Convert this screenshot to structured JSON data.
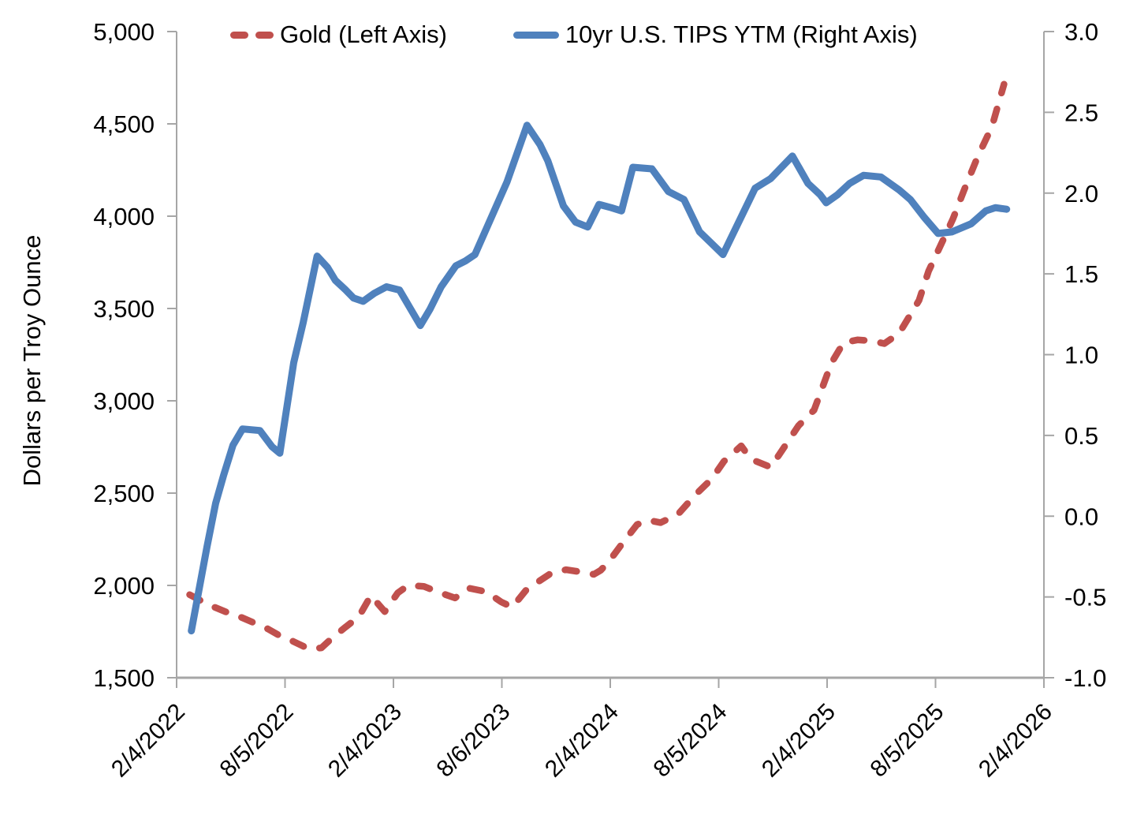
{
  "chart_data": {
    "type": "line",
    "title": "",
    "legend_position": "top",
    "grid": false,
    "left_axis": {
      "label": "Dollars per Troy Ounce",
      "min": 1500,
      "max": 5000,
      "step": 500,
      "ticks": [
        "5,000",
        "4,500",
        "4,000",
        "3,500",
        "3,000",
        "2,500",
        "2,000",
        "1,500"
      ]
    },
    "right_axis": {
      "label": "",
      "min": -1.0,
      "max": 3.0,
      "step": 0.5,
      "ticks": [
        "3.0",
        "2.5",
        "2.0",
        "1.5",
        "1.0",
        "0.5",
        "0.0",
        "-0.5",
        "-1.0"
      ]
    },
    "x_axis": {
      "tick_labels": [
        "2/4/2022",
        "8/5/2022",
        "2/4/2023",
        "8/6/2023",
        "2/4/2024",
        "8/5/2024",
        "2/4/2025",
        "8/5/2025",
        "2/4/2026"
      ],
      "label_rotation_deg": -45
    },
    "series": [
      {
        "name": "Gold (Left Axis)",
        "axis": "left",
        "color": "#C0504D",
        "style": "dashed",
        "points": [
          [
            0.015,
            1950
          ],
          [
            0.037,
            1895
          ],
          [
            0.056,
            1858
          ],
          [
            0.074,
            1828
          ],
          [
            0.089,
            1798
          ],
          [
            0.105,
            1765
          ],
          [
            0.121,
            1722
          ],
          [
            0.133,
            1700
          ],
          [
            0.153,
            1655
          ],
          [
            0.167,
            1662
          ],
          [
            0.18,
            1718
          ],
          [
            0.195,
            1775
          ],
          [
            0.21,
            1830
          ],
          [
            0.224,
            1945
          ],
          [
            0.24,
            1858
          ],
          [
            0.255,
            1960
          ],
          [
            0.267,
            2000
          ],
          [
            0.285,
            1995
          ],
          [
            0.301,
            1965
          ],
          [
            0.321,
            1932
          ],
          [
            0.337,
            1985
          ],
          [
            0.357,
            1966
          ],
          [
            0.374,
            1911
          ],
          [
            0.387,
            1882
          ],
          [
            0.403,
            1975
          ],
          [
            0.417,
            2020
          ],
          [
            0.433,
            2070
          ],
          [
            0.449,
            2085
          ],
          [
            0.466,
            2073
          ],
          [
            0.481,
            2060
          ],
          [
            0.489,
            2082
          ],
          [
            0.498,
            2127
          ],
          [
            0.515,
            2234
          ],
          [
            0.531,
            2330
          ],
          [
            0.544,
            2353
          ],
          [
            0.558,
            2340
          ],
          [
            0.578,
            2385
          ],
          [
            0.598,
            2490
          ],
          [
            0.617,
            2577
          ],
          [
            0.631,
            2672
          ],
          [
            0.651,
            2756
          ],
          [
            0.662,
            2684
          ],
          [
            0.685,
            2640
          ],
          [
            0.695,
            2710
          ],
          [
            0.717,
            2865
          ],
          [
            0.735,
            2950
          ],
          [
            0.755,
            3205
          ],
          [
            0.769,
            3315
          ],
          [
            0.785,
            3330
          ],
          [
            0.801,
            3325
          ],
          [
            0.816,
            3310
          ],
          [
            0.833,
            3365
          ],
          [
            0.856,
            3544
          ],
          [
            0.867,
            3702
          ],
          [
            0.881,
            3843
          ],
          [
            0.895,
            3984
          ],
          [
            0.908,
            4142
          ],
          [
            0.924,
            4326
          ],
          [
            0.94,
            4484
          ],
          [
            0.954,
            4715
          ]
        ]
      },
      {
        "name": "10yr U.S. TIPS YTM (Right Axis)",
        "axis": "right",
        "color": "#4F81BD",
        "style": "solid",
        "points": [
          [
            0.017,
            -0.71
          ],
          [
            0.035,
            -0.19
          ],
          [
            0.045,
            0.08
          ],
          [
            0.054,
            0.25
          ],
          [
            0.065,
            0.44
          ],
          [
            0.076,
            0.54
          ],
          [
            0.096,
            0.53
          ],
          [
            0.11,
            0.43
          ],
          [
            0.119,
            0.39
          ],
          [
            0.135,
            0.95
          ],
          [
            0.146,
            1.2
          ],
          [
            0.162,
            1.61
          ],
          [
            0.174,
            1.54
          ],
          [
            0.183,
            1.46
          ],
          [
            0.195,
            1.4
          ],
          [
            0.204,
            1.35
          ],
          [
            0.215,
            1.33
          ],
          [
            0.228,
            1.38
          ],
          [
            0.242,
            1.42
          ],
          [
            0.257,
            1.4
          ],
          [
            0.269,
            1.29
          ],
          [
            0.281,
            1.18
          ],
          [
            0.292,
            1.28
          ],
          [
            0.305,
            1.42
          ],
          [
            0.322,
            1.55
          ],
          [
            0.333,
            1.58
          ],
          [
            0.344,
            1.62
          ],
          [
            0.381,
            2.07
          ],
          [
            0.404,
            2.42
          ],
          [
            0.419,
            2.3
          ],
          [
            0.428,
            2.2
          ],
          [
            0.446,
            1.92
          ],
          [
            0.46,
            1.82
          ],
          [
            0.474,
            1.79
          ],
          [
            0.487,
            1.93
          ],
          [
            0.501,
            1.91
          ],
          [
            0.513,
            1.89
          ],
          [
            0.526,
            2.16
          ],
          [
            0.548,
            2.15
          ],
          [
            0.567,
            2.01
          ],
          [
            0.585,
            1.96
          ],
          [
            0.603,
            1.76
          ],
          [
            0.63,
            1.62
          ],
          [
            0.667,
            2.03
          ],
          [
            0.685,
            2.09
          ],
          [
            0.71,
            2.23
          ],
          [
            0.728,
            2.06
          ],
          [
            0.742,
            1.99
          ],
          [
            0.749,
            1.94
          ],
          [
            0.762,
            1.99
          ],
          [
            0.776,
            2.06
          ],
          [
            0.792,
            2.11
          ],
          [
            0.812,
            2.1
          ],
          [
            0.833,
            2.02
          ],
          [
            0.846,
            1.96
          ],
          [
            0.862,
            1.85
          ],
          [
            0.878,
            1.75
          ],
          [
            0.894,
            1.76
          ],
          [
            0.916,
            1.81
          ],
          [
            0.933,
            1.89
          ],
          [
            0.944,
            1.91
          ],
          [
            0.957,
            1.9
          ]
        ]
      }
    ]
  },
  "legend": {
    "gold_label": "Gold (Left Axis)",
    "tips_label": "10yr U.S. TIPS YTM (Right Axis)"
  },
  "left_axis_title": "Dollars per Troy Ounce",
  "colors": {
    "gold": "#C0504D",
    "tips": "#4F81BD",
    "axis": "#A6A6A6",
    "text": "#000000",
    "background": "#FFFFFF"
  }
}
